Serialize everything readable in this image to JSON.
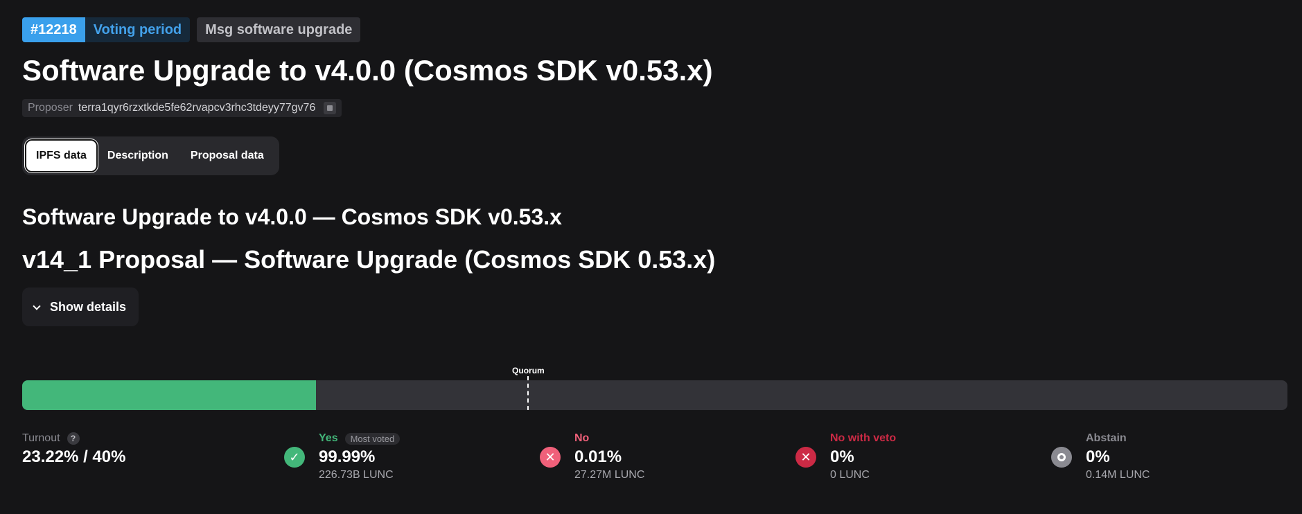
{
  "header": {
    "proposal_id": "#12218",
    "status": "Voting period",
    "type": "Msg software upgrade",
    "title": "Software Upgrade to v4.0.0 (Cosmos SDK v0.53.x)",
    "proposer_label": "Proposer",
    "proposer_address": "terra1qyr6rzxtkde5fe62rvapcv3rhc3tdeyy77gv76"
  },
  "tabs": [
    {
      "label": "IPFS data",
      "active": true
    },
    {
      "label": "Description",
      "active": false
    },
    {
      "label": "Proposal data",
      "active": false
    }
  ],
  "content": {
    "heading_1": "Software Upgrade to v4.0.0 — Cosmos SDK v0.53.x",
    "heading_2": "v14_1 Proposal — Software Upgrade (Cosmos SDK 0.53.x)",
    "show_details_label": "Show details"
  },
  "vote_bar": {
    "quorum_label": "Quorum",
    "yes_fill_fraction": 0.2322,
    "quorum_fraction": 0.4
  },
  "stats": {
    "turnout": {
      "label": "Turnout",
      "help": "?",
      "value": "23.22% / 40%"
    },
    "yes": {
      "label": "Yes",
      "badge": "Most voted",
      "percent": "99.99%",
      "amount": "226.73B LUNC",
      "color": "#43b77a"
    },
    "no": {
      "label": "No",
      "percent": "0.01%",
      "amount": "27.27M LUNC",
      "color": "#f0607a"
    },
    "no_with_veto": {
      "label": "No with veto",
      "percent": "0%",
      "amount": "0 LUNC",
      "color": "#cc2a45"
    },
    "abstain": {
      "label": "Abstain",
      "percent": "0%",
      "amount": "0.14M LUNC",
      "color": "#8a8a91"
    }
  }
}
